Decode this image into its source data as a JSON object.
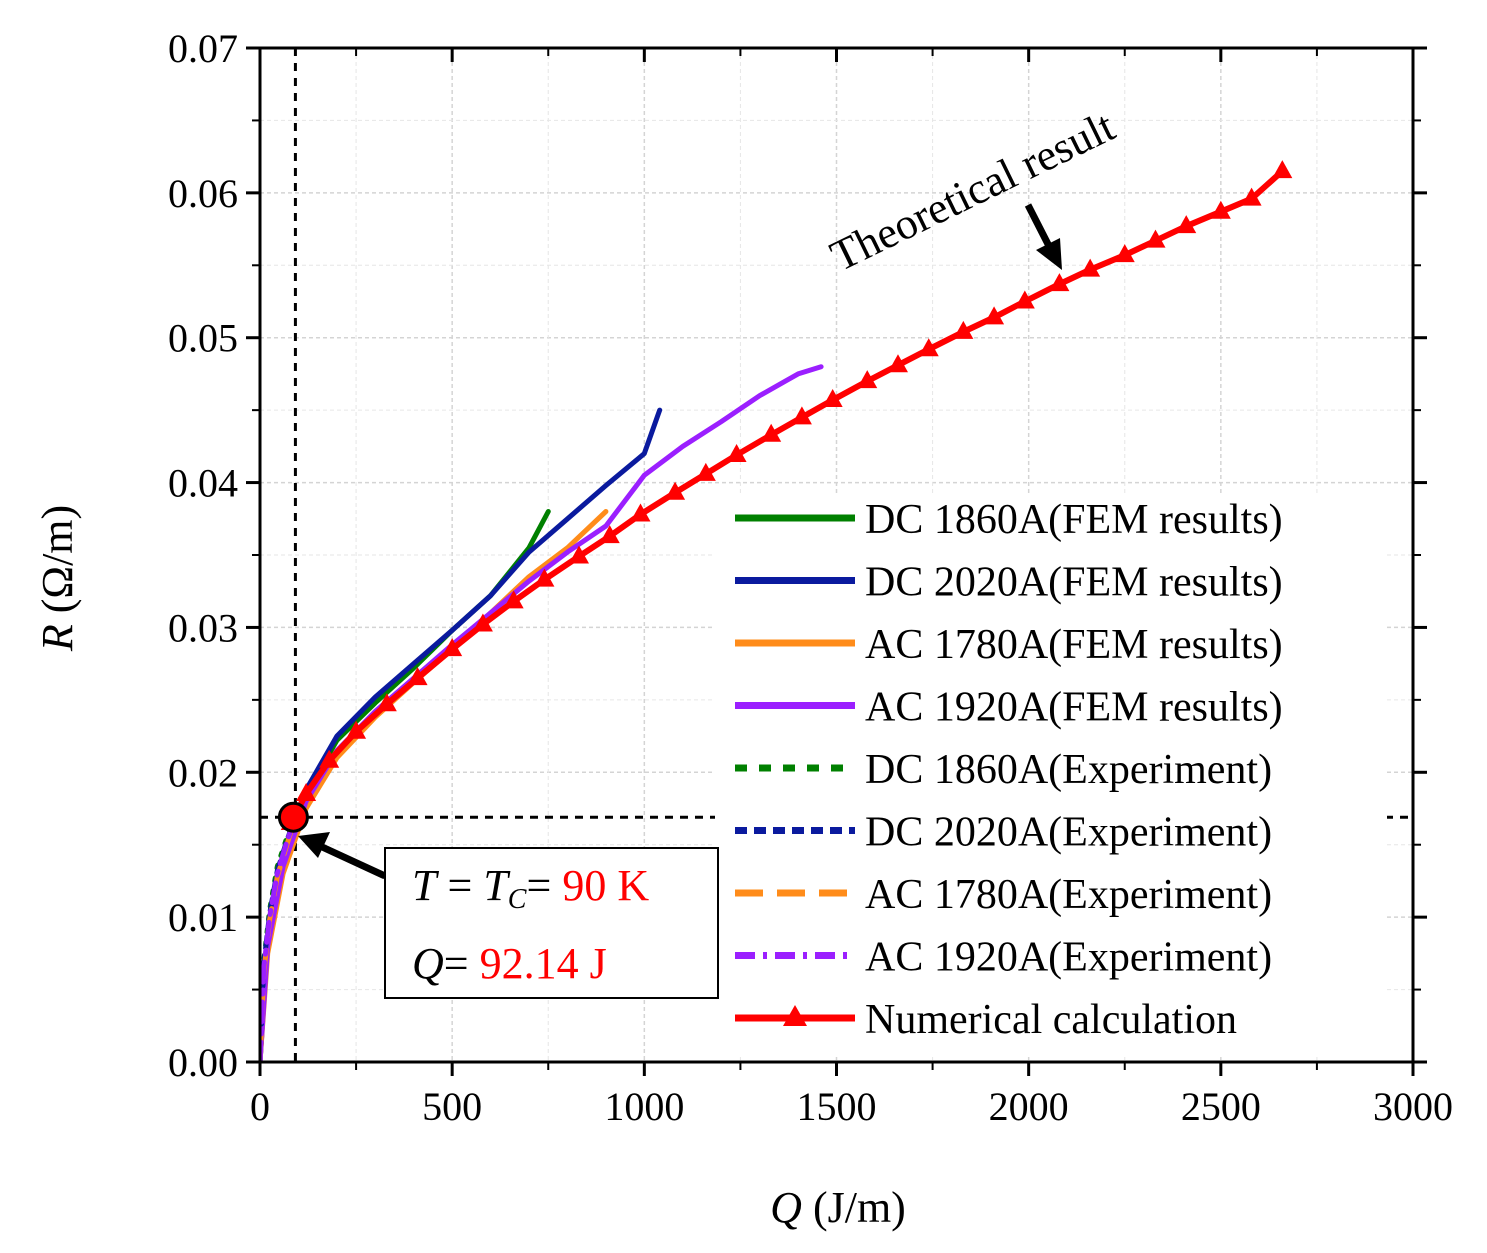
{
  "chart_data": {
    "type": "line",
    "xlabel_symbol": "Q",
    "xlabel_unit": " (J/m)",
    "ylabel_symbol": "R",
    "ylabel_unit": " (Ω/m)",
    "xlim": [
      0,
      3000
    ],
    "ylim": [
      0,
      0.07
    ],
    "xticks": [
      0,
      500,
      1000,
      1500,
      2000,
      2500,
      3000
    ],
    "xtick_labels": [
      "0",
      "500",
      "1000",
      "1500",
      "2000",
      "2500",
      "3000"
    ],
    "yticks": [
      0,
      0.01,
      0.02,
      0.03,
      0.04,
      0.05,
      0.06,
      0.07
    ],
    "ytick_labels": [
      "0.00",
      "0.01",
      "0.02",
      "0.03",
      "0.04",
      "0.05",
      "0.06",
      "0.07"
    ],
    "grid": true,
    "legend_position": "right",
    "colors": {
      "green": "#008000",
      "navy": "#0a1a9e",
      "orange": "#ff8c1a",
      "purple": "#9b1fff",
      "red": "#ff0000"
    },
    "series": [
      {
        "name": "DC 1860A(FEM results)",
        "style": "solid",
        "color": "#008000",
        "x": [
          0,
          20,
          60,
          120,
          200,
          300,
          400,
          500,
          600,
          700,
          750
        ],
        "y": [
          0,
          0.0085,
          0.014,
          0.0185,
          0.0222,
          0.0248,
          0.0272,
          0.0298,
          0.0322,
          0.0355,
          0.038
        ]
      },
      {
        "name": "DC 2020A(FEM results)",
        "style": "solid",
        "color": "#0a1a9e",
        "x": [
          0,
          20,
          60,
          120,
          200,
          300,
          400,
          500,
          600,
          700,
          800,
          900,
          1000,
          1040
        ],
        "y": [
          0,
          0.0085,
          0.014,
          0.0188,
          0.0225,
          0.0252,
          0.0275,
          0.0298,
          0.0322,
          0.0352,
          0.0375,
          0.0398,
          0.042,
          0.045
        ]
      },
      {
        "name": "AC 1780A(FEM results)",
        "style": "solid",
        "color": "#ff8c1a",
        "x": [
          0,
          20,
          60,
          120,
          200,
          300,
          400,
          500,
          600,
          700,
          800,
          900
        ],
        "y": [
          0,
          0.0075,
          0.013,
          0.0175,
          0.021,
          0.0238,
          0.0262,
          0.0285,
          0.031,
          0.0335,
          0.0355,
          0.038
        ]
      },
      {
        "name": "AC 1920A(FEM results)",
        "style": "solid",
        "color": "#9b1fff",
        "x": [
          0,
          20,
          60,
          120,
          200,
          300,
          400,
          500,
          600,
          700,
          800,
          900,
          1000,
          1100,
          1200,
          1300,
          1400,
          1460
        ],
        "y": [
          0,
          0.008,
          0.0135,
          0.018,
          0.0215,
          0.0242,
          0.0265,
          0.0288,
          0.031,
          0.0332,
          0.0352,
          0.037,
          0.0405,
          0.0425,
          0.0442,
          0.046,
          0.0475,
          0.048
        ]
      },
      {
        "name": "DC 1860A(Experiment)",
        "style": "dot",
        "color": "#008000",
        "x": [
          0,
          10,
          25,
          45,
          70,
          92
        ],
        "y": [
          0,
          0.007,
          0.0105,
          0.0135,
          0.0155,
          0.0169
        ]
      },
      {
        "name": "DC 2020A(Experiment)",
        "style": "short-dash",
        "color": "#0a1a9e",
        "x": [
          0,
          10,
          25,
          45,
          70,
          92
        ],
        "y": [
          0,
          0.0068,
          0.0102,
          0.0132,
          0.0153,
          0.0169
        ]
      },
      {
        "name": "AC 1780A(Experiment)",
        "style": "long-dash",
        "color": "#ff8c1a",
        "x": [
          0,
          10,
          25,
          45,
          70,
          92
        ],
        "y": [
          0,
          0.0062,
          0.0098,
          0.0128,
          0.015,
          0.0169
        ]
      },
      {
        "name": "AC 1920A(Experiment)",
        "style": "dash-dot",
        "color": "#9b1fff",
        "x": [
          0,
          10,
          25,
          45,
          70,
          92
        ],
        "y": [
          0,
          0.0065,
          0.01,
          0.013,
          0.0152,
          0.0169
        ]
      },
      {
        "name": "Numerical calculation",
        "style": "solid-triangle",
        "color": "#ff0000",
        "x": [
          80,
          120,
          180,
          250,
          330,
          410,
          500,
          580,
          660,
          740,
          830,
          910,
          990,
          1080,
          1160,
          1240,
          1330,
          1410,
          1490,
          1580,
          1660,
          1740,
          1830,
          1910,
          1990,
          2080,
          2160,
          2250,
          2330,
          2410,
          2500,
          2580,
          2660
        ],
        "y": [
          0.0165,
          0.0185,
          0.0208,
          0.0228,
          0.0247,
          0.0265,
          0.0285,
          0.0302,
          0.0318,
          0.0333,
          0.0349,
          0.0363,
          0.0378,
          0.0393,
          0.0406,
          0.0419,
          0.0433,
          0.0445,
          0.0457,
          0.047,
          0.0481,
          0.0492,
          0.0504,
          0.0514,
          0.0525,
          0.0537,
          0.0547,
          0.0557,
          0.0567,
          0.0577,
          0.0587,
          0.0596,
          0.0615
        ]
      }
    ],
    "reference_point": {
      "x": 92.14,
      "y": 0.0169
    },
    "annotations": {
      "theoretical_label": "Theoretical result",
      "box_line1_T": "T",
      "box_line1_eq": " = ",
      "box_line1_TC": "T",
      "box_line1_C": "C",
      "box_line1_eq2": "= ",
      "box_line1_value": "90 K",
      "box_line2_Q": "Q",
      "box_line2_eq": "= ",
      "box_line2_value": "92.14 J"
    }
  }
}
